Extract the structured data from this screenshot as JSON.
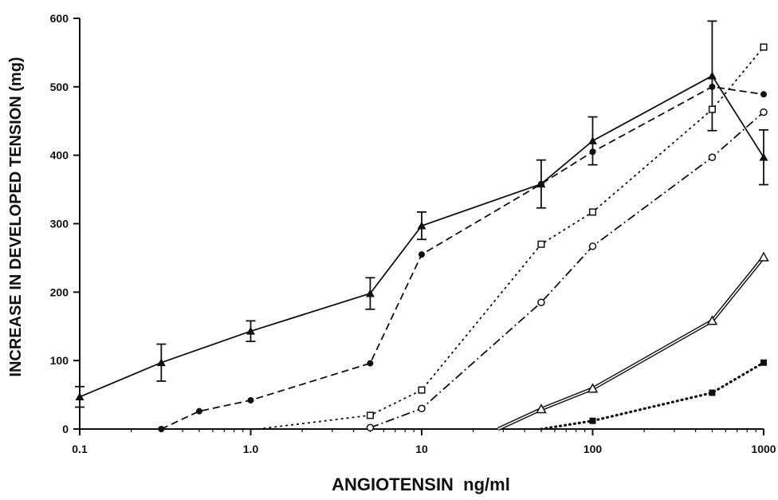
{
  "chart_data": {
    "type": "line",
    "title": "",
    "xlabel": "ANGIOTENSIN  ng/ml",
    "ylabel": "INCREASE IN DEVELOPED TENSION  (mg)",
    "xscale": "log",
    "xlim": [
      0.1,
      1000
    ],
    "ylim": [
      0,
      600
    ],
    "xticks": [
      {
        "value": 0.1,
        "label": "0.1"
      },
      {
        "value": 1,
        "label": "1.0"
      },
      {
        "value": 10,
        "label": "10"
      },
      {
        "value": 100,
        "label": "100"
      },
      {
        "value": 1000,
        "label": "1000"
      }
    ],
    "yticks": [
      0,
      100,
      200,
      300,
      400,
      500,
      600
    ],
    "grid": false,
    "legend": "none",
    "series": [
      {
        "style": "solid",
        "marker": "filled-triangle",
        "x": [
          0.1,
          0.3,
          1,
          5,
          10,
          50,
          100,
          500,
          1000
        ],
        "y": [
          47,
          97,
          143,
          198,
          297,
          358,
          421,
          516,
          397
        ],
        "err": [
          15,
          27,
          15,
          23,
          20,
          35,
          35,
          80,
          40
        ]
      },
      {
        "style": "dashed",
        "marker": "filled-circle",
        "x": [
          0.3,
          0.5,
          1,
          5,
          10,
          50,
          100,
          500,
          1000
        ],
        "y": [
          0,
          26,
          42,
          96,
          255,
          358,
          405,
          500,
          489
        ]
      },
      {
        "style": "dotted",
        "marker": "open-square",
        "x": [
          1.1,
          5,
          10,
          50,
          100,
          500,
          1000
        ],
        "y": [
          0,
          20,
          57,
          270,
          317,
          467,
          558
        ]
      },
      {
        "style": "dash-dot",
        "marker": "open-circle",
        "x": [
          5,
          10,
          50,
          100,
          500,
          1000
        ],
        "y": [
          2,
          30,
          185,
          267,
          397,
          463
        ]
      },
      {
        "style": "double",
        "marker": "open-triangle",
        "x": [
          28,
          50,
          100,
          500,
          1000
        ],
        "y": [
          0,
          29,
          59,
          158,
          251
        ]
      },
      {
        "style": "heavy-dotted",
        "marker": "filled-square",
        "x": [
          50,
          100,
          500,
          1000
        ],
        "y": [
          0,
          12,
          53,
          97
        ]
      }
    ]
  }
}
